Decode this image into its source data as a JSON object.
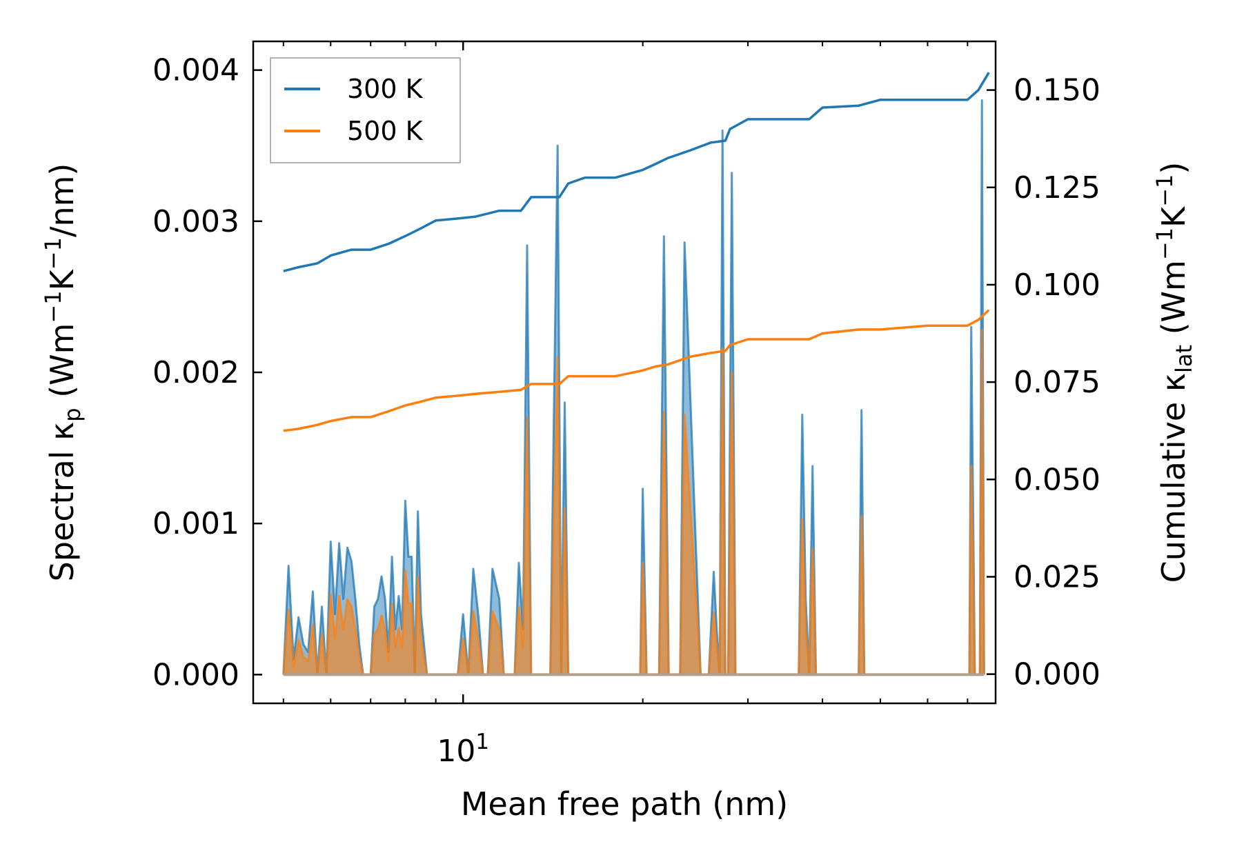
{
  "chart_data": {
    "type": "line",
    "xlabel": "Mean free path (nm)",
    "x_scale": "log",
    "xlim": [
      4.45,
      78
    ],
    "x_major_ticks": [
      10
    ],
    "x_major_tick_labels": [
      "10"
    ],
    "x_major_tick_exponent": "1",
    "x_minor_ticks": [
      5,
      6,
      7,
      8,
      9,
      20,
      30,
      40,
      50,
      60,
      70
    ],
    "y_left": {
      "label_parts": [
        "Spectral κ",
        "p",
        " (Wm",
        "−1",
        "K",
        "−1",
        "/nm)"
      ],
      "ylim": [
        -0.00019,
        0.00419
      ],
      "ticks": [
        0.0,
        0.001,
        0.002,
        0.003,
        0.004
      ],
      "tick_labels": [
        "0.000",
        "0.001",
        "0.002",
        "0.003",
        "0.004"
      ]
    },
    "y_right": {
      "label_parts": [
        "Cumulative κ",
        "lat",
        " (Wm",
        "−1",
        "K",
        "−1",
        ")"
      ],
      "ylim": [
        -0.0075,
        0.1625
      ],
      "ticks": [
        0.0,
        0.025,
        0.05,
        0.075,
        0.1,
        0.125,
        0.15
      ],
      "tick_labels": [
        "0.000",
        "0.025",
        "0.050",
        "0.075",
        "0.100",
        "0.125",
        "0.150"
      ]
    },
    "legend": {
      "position": "upper-left",
      "entries": [
        "300 K",
        "500 K"
      ]
    },
    "colors": {
      "300K": "#1f77b4",
      "500K": "#ff7f0e",
      "overlap": "#b98a6a"
    },
    "series": [
      {
        "name": "300 K",
        "axis": "right",
        "kind": "cumulative",
        "x": [
          5.0,
          5.3,
          5.7,
          6.0,
          6.5,
          7.0,
          7.5,
          8.0,
          8.5,
          9.0,
          9.8,
          10.5,
          11.5,
          12.5,
          13.0,
          14.5,
          15.0,
          16.0,
          18.0,
          20.0,
          21.0,
          22.0,
          24.0,
          26.0,
          27.5,
          28.0,
          30.0,
          38.0,
          40.0,
          46.0,
          50.0,
          60.0,
          70.0,
          73.0,
          76.0
        ],
        "y": [
          0.1035,
          0.1045,
          0.1055,
          0.1075,
          0.109,
          0.109,
          0.1105,
          0.1125,
          0.1145,
          0.1165,
          0.117,
          0.1175,
          0.119,
          0.119,
          0.1225,
          0.1225,
          0.126,
          0.1275,
          0.1275,
          0.1295,
          0.131,
          0.1325,
          0.1345,
          0.1365,
          0.137,
          0.14,
          0.1425,
          0.1425,
          0.1455,
          0.146,
          0.1475,
          0.1475,
          0.1475,
          0.15,
          0.1545
        ]
      },
      {
        "name": "500 K",
        "axis": "right",
        "kind": "cumulative",
        "x": [
          5.0,
          5.3,
          5.7,
          6.0,
          6.5,
          7.0,
          7.5,
          8.0,
          8.5,
          9.0,
          9.8,
          10.5,
          11.5,
          12.5,
          13.0,
          14.5,
          15.0,
          16.0,
          18.0,
          20.0,
          21.0,
          22.0,
          24.0,
          26.0,
          27.5,
          28.0,
          30.0,
          38.0,
          40.0,
          46.0,
          50.0,
          60.0,
          70.0,
          73.0,
          76.0
        ],
        "y": [
          0.0625,
          0.063,
          0.064,
          0.065,
          0.066,
          0.066,
          0.0675,
          0.069,
          0.07,
          0.071,
          0.0715,
          0.072,
          0.0725,
          0.073,
          0.0745,
          0.0745,
          0.0765,
          0.0765,
          0.0765,
          0.078,
          0.079,
          0.0795,
          0.0815,
          0.0825,
          0.083,
          0.0845,
          0.086,
          0.086,
          0.0875,
          0.0885,
          0.0885,
          0.0895,
          0.0895,
          0.091,
          0.0935
        ]
      },
      {
        "name": "300 K",
        "axis": "left",
        "kind": "spectral",
        "x": [
          5.0,
          5.1,
          5.2,
          5.3,
          5.4,
          5.5,
          5.6,
          5.7,
          5.8,
          5.9,
          6.0,
          6.1,
          6.2,
          6.3,
          6.4,
          6.5,
          6.6,
          6.7,
          6.8,
          6.9,
          7.0,
          7.1,
          7.2,
          7.3,
          7.4,
          7.5,
          7.6,
          7.7,
          7.8,
          7.9,
          8.0,
          8.1,
          8.2,
          8.3,
          8.4,
          8.5,
          8.6,
          8.7,
          8.8,
          9.5,
          9.8,
          10.0,
          10.2,
          10.4,
          10.6,
          10.8,
          11.0,
          11.2,
          11.5,
          11.7,
          12.2,
          12.4,
          12.6,
          12.8,
          13.0,
          13.2,
          13.4,
          14.0,
          14.4,
          14.6,
          14.8,
          15.0,
          15.3,
          15.6,
          15.9,
          19.8,
          20.0,
          20.3,
          21.3,
          21.7,
          22.1,
          22.8,
          23.1,
          23.5,
          25.0,
          25.4,
          25.8,
          26.3,
          26.6,
          26.9,
          27.2,
          27.5,
          27.8,
          28.2,
          28.6,
          29.0,
          36.5,
          37.0,
          37.5,
          38.0,
          38.5,
          39.0,
          39.5,
          46.0,
          46.5,
          47.0,
          70.0,
          70.5,
          71.0,
          72.0,
          72.7,
          73.4,
          74.0,
          74.6
        ],
        "y": [
          0.0,
          0.00072,
          0.0001,
          0.00038,
          0.0002,
          0.00015,
          0.00055,
          0.0,
          0.00045,
          0.0,
          0.00088,
          0.0004,
          0.00087,
          0.0005,
          0.00084,
          0.00075,
          0.0005,
          0.0002,
          0.0,
          0.0,
          0.0,
          0.00045,
          0.0005,
          0.00065,
          0.0005,
          0.00015,
          0.00078,
          0.0003,
          0.00052,
          0.0003,
          0.00115,
          0.00078,
          0.00078,
          0.0,
          0.00108,
          0.0004,
          0.0002,
          0.0,
          0.0,
          0.0,
          0.0,
          0.0004,
          0.0,
          0.0007,
          0.0004,
          0.0,
          0.0,
          0.0007,
          0.0005,
          0.0,
          0.0,
          0.00074,
          0.0003,
          0.00284,
          0.0,
          0.0,
          0.0,
          0.0,
          0.0035,
          0.0,
          0.0018,
          0.0,
          0.0,
          0.0,
          0.0,
          0.0,
          0.00123,
          0.0,
          0.0,
          0.0029,
          0.0,
          0.0,
          0.0,
          0.00286,
          0.0,
          0.0,
          0.0,
          0.00068,
          0.0003,
          0.0,
          0.0036,
          0.0,
          0.0,
          0.00332,
          0.0,
          0.0,
          0.0,
          0.00172,
          0.0005,
          0.0,
          0.00138,
          0.0,
          0.0,
          0.0,
          0.00175,
          0.0,
          0.0,
          0.0,
          0.0023,
          0.0,
          0.0,
          0.0,
          0.0038,
          0.0
        ]
      },
      {
        "name": "500 K",
        "axis": "left",
        "kind": "spectral",
        "x": [
          5.0,
          5.1,
          5.2,
          5.3,
          5.4,
          5.5,
          5.6,
          5.7,
          5.8,
          5.9,
          6.0,
          6.1,
          6.2,
          6.3,
          6.4,
          6.5,
          6.6,
          6.7,
          6.8,
          6.9,
          7.0,
          7.1,
          7.2,
          7.3,
          7.4,
          7.5,
          7.6,
          7.7,
          7.8,
          7.9,
          8.0,
          8.1,
          8.2,
          8.3,
          8.4,
          8.5,
          8.6,
          8.7,
          8.8,
          9.5,
          9.8,
          10.0,
          10.2,
          10.4,
          10.6,
          10.8,
          11.0,
          11.2,
          11.5,
          11.7,
          12.2,
          12.4,
          12.6,
          12.8,
          13.0,
          13.2,
          13.4,
          14.0,
          14.4,
          14.6,
          14.8,
          15.0,
          15.3,
          15.6,
          15.9,
          19.8,
          20.0,
          20.3,
          21.3,
          21.7,
          22.1,
          22.8,
          23.1,
          23.5,
          25.0,
          25.4,
          25.8,
          26.3,
          26.6,
          26.9,
          27.2,
          27.5,
          27.8,
          28.2,
          28.6,
          29.0,
          36.5,
          37.0,
          37.5,
          38.0,
          38.5,
          39.0,
          39.5,
          46.0,
          46.5,
          47.0,
          70.0,
          70.5,
          71.0,
          72.0,
          72.7,
          73.4,
          74.0,
          74.6
        ],
        "y": [
          0.0,
          0.00043,
          5e-05,
          0.00023,
          0.00012,
          9e-05,
          0.00033,
          0.0,
          0.00027,
          0.0,
          0.00053,
          0.00024,
          0.00052,
          0.0003,
          0.0005,
          0.00045,
          0.0003,
          0.00012,
          0.0,
          0.0,
          0.0,
          0.00027,
          0.0003,
          0.00039,
          0.0003,
          9e-05,
          0.00047,
          0.00018,
          0.00031,
          0.00018,
          0.00069,
          0.00047,
          0.00047,
          0.0,
          0.00065,
          0.00024,
          0.00012,
          0.0,
          0.0,
          0.0,
          0.0,
          0.00024,
          0.0,
          0.00042,
          0.00024,
          0.0,
          0.0,
          0.00042,
          0.0003,
          0.0,
          0.0,
          0.00045,
          0.00018,
          0.0017,
          0.0,
          0.0,
          0.0,
          0.0,
          0.0021,
          0.0,
          0.0011,
          0.0,
          0.0,
          0.0,
          0.0,
          0.0,
          0.00074,
          0.0,
          0.0,
          0.00174,
          0.0,
          0.0,
          0.0,
          0.00172,
          0.0,
          0.0,
          0.0,
          0.00041,
          0.00018,
          0.0,
          0.00216,
          0.0,
          0.0,
          0.002,
          0.0,
          0.0,
          0.0,
          0.00103,
          0.0003,
          0.0,
          0.00083,
          0.0,
          0.0,
          0.0,
          0.00105,
          0.0,
          0.0,
          0.0,
          0.00138,
          0.0,
          0.0,
          0.0,
          0.00228,
          0.0
        ]
      }
    ]
  }
}
